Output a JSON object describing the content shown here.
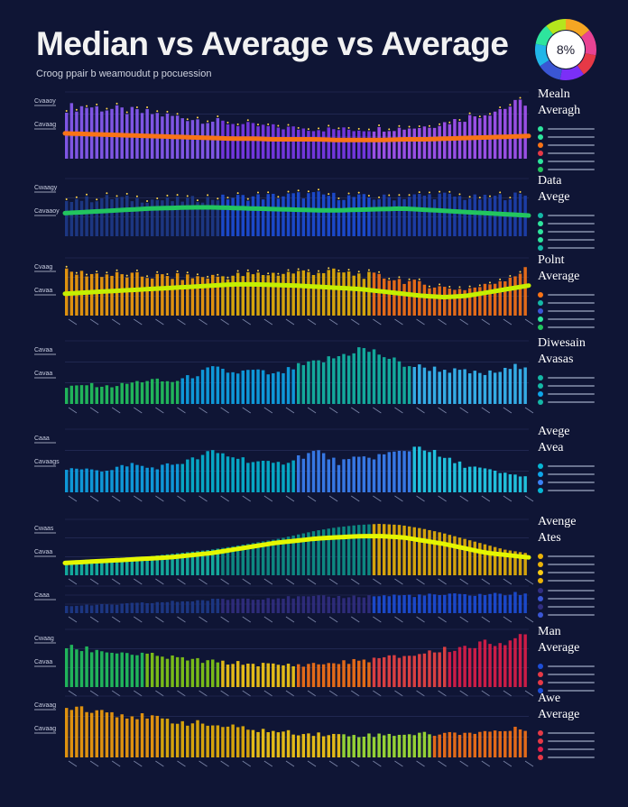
{
  "header": {
    "title": "Median vs Average vs Average",
    "subtitle": "Croog ppair b weamoudut p pocuession"
  },
  "donut": {
    "label": "8%",
    "colors": [
      "#f5a623",
      "#e84393",
      "#e63946",
      "#7b2ff7",
      "#3a56d4",
      "#21b6e8",
      "#2ee59d",
      "#b5e61d"
    ],
    "shares": [
      14,
      14,
      12,
      13,
      13,
      12,
      11,
      11
    ]
  },
  "chart_data": [
    {
      "type": "bar",
      "title": "Mealn / Averagh",
      "y_tick_labels": [
        "Cvaaoy",
        "Cavaag"
      ],
      "ylim": [
        0,
        100
      ],
      "colors": [
        "#8b5cf6",
        "#7c3aed",
        "#a855f7"
      ],
      "series": [
        {
          "name": "bars",
          "values": [
            84,
            86,
            82,
            78,
            75,
            70,
            66,
            62,
            58,
            54,
            52,
            50,
            49,
            48,
            48,
            49,
            50,
            52,
            58,
            66,
            74,
            84,
            94
          ]
        },
        {
          "name": "median",
          "color": "#f97316",
          "values": [
            38,
            37,
            36,
            35,
            34,
            33,
            32,
            31,
            30,
            30,
            29,
            29,
            29,
            28,
            28,
            28,
            29,
            29,
            30,
            31,
            32,
            33,
            34
          ]
        }
      ]
    },
    {
      "type": "bar",
      "title": "Data / Avege",
      "y_tick_labels": [
        "Cwaagy",
        "Cavaaoy"
      ],
      "ylim": [
        0,
        100
      ],
      "colors": [
        "#1e3a8a",
        "#1d4ed8",
        "#1e40af"
      ],
      "series": [
        {
          "name": "bars",
          "values": [
            72,
            70,
            73,
            71,
            70,
            68,
            70,
            72,
            74,
            75,
            76,
            78,
            79,
            76,
            74,
            73,
            75,
            77,
            78,
            74,
            72,
            76,
            78
          ]
        },
        {
          "name": "median",
          "color": "#22c55e",
          "values": [
            40,
            42,
            44,
            46,
            48,
            49,
            50,
            50,
            49,
            48,
            47,
            46,
            45,
            45,
            46,
            47,
            48,
            46,
            44,
            42,
            40,
            38,
            36
          ]
        }
      ]
    },
    {
      "type": "bar",
      "title": "Polnt / Average",
      "y_tick_labels": [
        "Cvaag",
        "Cavaa"
      ],
      "ylim": [
        0,
        100
      ],
      "colors": [
        "#f59e0b",
        "#eab308",
        "#f97316"
      ],
      "series": [
        {
          "name": "bars",
          "values": [
            82,
            80,
            78,
            76,
            75,
            74,
            73,
            74,
            76,
            78,
            80,
            82,
            84,
            82,
            78,
            74,
            68,
            60,
            54,
            50,
            56,
            70,
            86
          ]
        },
        {
          "name": "median",
          "color": "#c4f000",
          "values": [
            38,
            40,
            42,
            44,
            46,
            48,
            50,
            52,
            54,
            54,
            53,
            52,
            50,
            48,
            46,
            42,
            38,
            34,
            32,
            34,
            40,
            46,
            52
          ]
        }
      ]
    },
    {
      "type": "bar",
      "title": "Diwesain / Avasas",
      "y_tick_labels": [
        "Cavaa",
        "Cavaa"
      ],
      "ylim": [
        0,
        100
      ],
      "colors": [
        "#22c55e",
        "#0ea5e9",
        "#14b8a6",
        "#38bdf8"
      ],
      "series": [
        {
          "name": "bars",
          "values": [
            28,
            34,
            30,
            36,
            42,
            38,
            48,
            62,
            54,
            58,
            50,
            64,
            72,
            82,
            96,
            88,
            70,
            64,
            60,
            56,
            52,
            58,
            70
          ]
        }
      ]
    },
    {
      "type": "bar",
      "title": "Avege / Avea",
      "y_tick_labels": [
        "Caaa",
        "Cavaags"
      ],
      "ylim": [
        0,
        100
      ],
      "colors": [
        "#0ea5e9",
        "#06b6d4",
        "#3b82f6",
        "#22d3ee"
      ],
      "series": [
        {
          "name": "bars",
          "values": [
            38,
            44,
            36,
            50,
            42,
            48,
            56,
            70,
            62,
            54,
            48,
            60,
            72,
            52,
            58,
            64,
            70,
            82,
            60,
            48,
            40,
            32,
            28
          ]
        }
      ]
    },
    {
      "type": "area",
      "title": "Avenge / Ates",
      "y_tick_labels": [
        "Cwaas",
        "Cavaa"
      ],
      "ylim": [
        0,
        100
      ],
      "colors": [
        "#14b8a6",
        "#0d9488",
        "#eab308"
      ],
      "series": [
        {
          "name": "bars",
          "values": [
            26,
            28,
            30,
            32,
            34,
            38,
            42,
            46,
            52,
            58,
            64,
            72,
            80,
            86,
            90,
            92,
            90,
            84,
            76,
            66,
            56,
            46,
            40
          ]
        },
        {
          "name": "median",
          "color": "#e5f700",
          "values": [
            22,
            24,
            26,
            28,
            30,
            32,
            36,
            40,
            46,
            52,
            58,
            62,
            66,
            68,
            70,
            70,
            68,
            62,
            56,
            48,
            40,
            36,
            32
          ]
        }
      ]
    },
    {
      "type": "bar",
      "title": "",
      "y_tick_labels": [
        "Caaa"
      ],
      "ylim": [
        0,
        100
      ],
      "colors": [
        "#1e3a8a",
        "#312e81",
        "#1d4ed8"
      ],
      "series": [
        {
          "name": "bars",
          "values": [
            30,
            32,
            34,
            38,
            42,
            46,
            50,
            54,
            58,
            60,
            62,
            64,
            66,
            66,
            68,
            70,
            72,
            72,
            74,
            74,
            76,
            78,
            80
          ]
        }
      ]
    },
    {
      "type": "bar",
      "title": "Man / Average",
      "y_tick_labels": [
        "Cwaag",
        "Cavaa"
      ],
      "ylim": [
        0,
        100
      ],
      "colors": [
        "#22c55e",
        "#84cc16",
        "#facc15",
        "#f97316",
        "#ef4444",
        "#e11d48"
      ],
      "series": [
        {
          "name": "bars",
          "values": [
            74,
            72,
            68,
            64,
            60,
            56,
            52,
            48,
            46,
            44,
            42,
            42,
            44,
            46,
            50,
            54,
            58,
            64,
            70,
            76,
            82,
            88,
            94
          ]
        }
      ]
    },
    {
      "type": "bar",
      "title": "Awe / Average",
      "y_tick_labels": [
        "Cavaag",
        "Cavaag"
      ],
      "ylim": [
        0,
        100
      ],
      "colors": [
        "#f59e0b",
        "#eab308",
        "#facc15",
        "#a3e635",
        "#f97316"
      ],
      "series": [
        {
          "name": "bars",
          "values": [
            94,
            88,
            82,
            76,
            70,
            66,
            62,
            58,
            54,
            50,
            46,
            44,
            42,
            40,
            40,
            40,
            42,
            42,
            42,
            44,
            46,
            48,
            52
          ]
        }
      ]
    }
  ],
  "panels": [
    {
      "label1": "Mealn",
      "label2": "Averagh",
      "legend": [
        "#2ee59d",
        "#2ee59d",
        "#f97316",
        "#e63946",
        "#2ee59d",
        "#22c55e"
      ]
    },
    {
      "label1": "Data",
      "label2": "Avege",
      "legend": [
        "#14b8a6",
        "#2ee59d",
        "#2ee59d",
        "#2ee59d",
        "#14b8a6"
      ]
    },
    {
      "label1": "Polnt",
      "label2": "Average",
      "legend": [
        "#f97316",
        "#14b8a6",
        "#3a56d4",
        "#2ee59d",
        "#22c55e"
      ]
    },
    {
      "label1": "Diwesain",
      "label2": "Avasas",
      "legend": [
        "#14b8a6",
        "#14b8a6",
        "#0ea5e9",
        "#14b8a6"
      ]
    },
    {
      "label1": "Avege",
      "label2": "Avea",
      "legend": [
        "#06b6d4",
        "#0ea5e9",
        "#3b82f6",
        "#06b6d4"
      ]
    },
    {
      "label1": "Avenge",
      "label2": "Ates",
      "legend": [
        "#eab308",
        "#eab308",
        "#facc15",
        "#eab308"
      ]
    },
    {
      "label1": "",
      "label2": "",
      "legend": [
        "#312e81",
        "#3a56d4",
        "#312e81",
        "#3a56d4"
      ]
    },
    {
      "label1": "Man",
      "label2": "Average",
      "legend": [
        "#1d4ed8",
        "#e63946",
        "#e63946",
        "#1d4ed8"
      ]
    },
    {
      "label1": "Awe",
      "label2": "Average",
      "legend": [
        "#e63946",
        "#e63946",
        "#e11d48",
        "#e63946"
      ]
    }
  ]
}
